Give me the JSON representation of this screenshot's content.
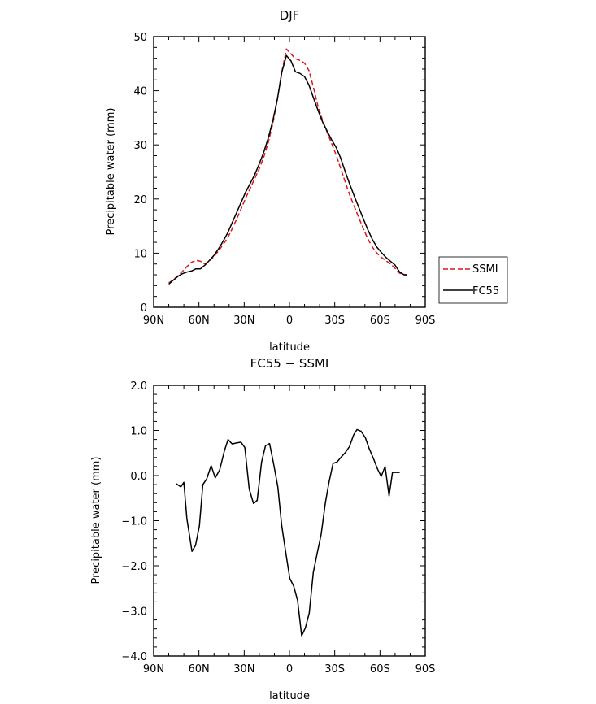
{
  "chart_data": [
    {
      "type": "line",
      "title": "DJF",
      "xlabel": "latitude",
      "ylabel": "Precipitable water  (mm)",
      "xlim": [
        90,
        -90
      ],
      "ylim": [
        0,
        50
      ],
      "xticks": [
        90,
        60,
        30,
        0,
        -30,
        -60,
        -90
      ],
      "xticklabels": [
        "90N",
        "60N",
        "30N",
        "0",
        "30S",
        "60S",
        "90S"
      ],
      "yticks": [
        0,
        10,
        20,
        30,
        40,
        50
      ],
      "yticklabels": [
        "0",
        "10",
        "20",
        "30",
        "40",
        "50"
      ],
      "legend": {
        "placement": "right",
        "entries": [
          "SSMI",
          "FC55"
        ]
      },
      "series": [
        {
          "name": "SSMI",
          "color": "#e0151b",
          "dash": "dashed",
          "x": [
            80,
            77,
            74,
            71,
            68,
            65,
            62,
            59,
            56,
            53,
            50,
            47,
            44,
            41,
            38,
            35,
            32,
            29,
            26,
            23,
            20,
            17,
            14,
            11,
            8,
            5,
            2,
            -1,
            -4,
            -7,
            -10,
            -13,
            -16,
            -19,
            -22,
            -25,
            -28,
            -31,
            -34,
            -37,
            -40,
            -43,
            -46,
            -49,
            -52,
            -55,
            -58,
            -61,
            -64,
            -67,
            -70,
            -73,
            -76,
            -78
          ],
          "values": [
            4.5,
            5.1,
            5.8,
            6.6,
            7.5,
            8.3,
            8.7,
            8.5,
            8.0,
            8.6,
            9.4,
            10.4,
            11.6,
            12.8,
            14.5,
            16.3,
            18.2,
            20.2,
            22.0,
            23.8,
            25.6,
            27.8,
            30.5,
            34.0,
            38.5,
            43.5,
            47.7,
            46.8,
            45.9,
            45.6,
            45.1,
            43.7,
            40.5,
            37.0,
            34.5,
            32.3,
            30.2,
            28.1,
            25.6,
            23.1,
            20.7,
            18.6,
            16.5,
            14.5,
            12.6,
            11.1,
            10.0,
            9.2,
            8.6,
            8.0,
            7.2,
            6.3,
            6.0,
            6.0
          ]
        },
        {
          "name": "FC55",
          "color": "#000000",
          "dash": "solid",
          "x": [
            80,
            77,
            74,
            71,
            68,
            65,
            62,
            59,
            56,
            53,
            50,
            47,
            44,
            41,
            38,
            35,
            32,
            29,
            26,
            23,
            20,
            17,
            14,
            11,
            8,
            5,
            2,
            -1,
            -4,
            -7,
            -10,
            -13,
            -16,
            -19,
            -22,
            -25,
            -28,
            -31,
            -34,
            -37,
            -40,
            -43,
            -46,
            -49,
            -52,
            -55,
            -58,
            -61,
            -64,
            -67,
            -70,
            -73,
            -76,
            -78
          ],
          "values": [
            4.3,
            5.0,
            5.7,
            6.2,
            6.5,
            6.7,
            7.1,
            7.1,
            7.8,
            8.7,
            9.6,
            10.8,
            12.2,
            13.7,
            15.6,
            17.5,
            19.4,
            21.3,
            22.9,
            24.5,
            26.5,
            28.7,
            31.3,
            34.5,
            38.5,
            43.5,
            46.5,
            45.5,
            43.5,
            43.2,
            42.6,
            41.0,
            38.6,
            36.3,
            34.2,
            32.5,
            30.9,
            29.5,
            27.5,
            25.0,
            22.7,
            20.5,
            18.4,
            16.3,
            14.3,
            12.5,
            11.1,
            10.1,
            9.2,
            8.5,
            7.8,
            6.5,
            6.0,
            6.0
          ]
        }
      ]
    },
    {
      "type": "line",
      "title": "FC55 − SSMI",
      "xlabel": "latitude",
      "ylabel": "Precipitable water  (mm)",
      "xlim": [
        90,
        -90
      ],
      "ylim": [
        -4,
        2
      ],
      "xticks": [
        90,
        60,
        30,
        0,
        -30,
        -60,
        -90
      ],
      "xticklabels": [
        "90N",
        "60N",
        "30N",
        "0",
        "30S",
        "60S",
        "90S"
      ],
      "yticks": [
        -4,
        -3,
        -2,
        -1,
        0,
        1,
        2
      ],
      "yticklabels": [
        "−4.0",
        "−3.0",
        "−2.0",
        "−1.0",
        "0.0",
        "1.0",
        "2.0"
      ],
      "series": [
        {
          "color": "#000000",
          "dash": "solid",
          "x": [
            75,
            72,
            70,
            68,
            64.6,
            62.3,
            59.7,
            57.4,
            54.8,
            51.9,
            49.2,
            46.3,
            43.1,
            40.7,
            38,
            35.4,
            32.1,
            29.6,
            26.7,
            23.8,
            21.4,
            18.5,
            15.9,
            13.2,
            10.6,
            7.7,
            5.2,
            2.5,
            -0.2,
            -2.8,
            -5.4,
            -8.1,
            -10.5,
            -13.1,
            -15.8,
            -18.4,
            -21,
            -23.8,
            -26.2,
            -28.9,
            -31.5,
            -34.3,
            -37,
            -39.7,
            -42.5,
            -44.8,
            -47.5,
            -50.3,
            -52.8,
            -55.6,
            -58.3,
            -60.8,
            -63.4,
            -66,
            -68.3,
            -70.7,
            -73.1
          ],
          "values": [
            -0.18,
            -0.25,
            -0.15,
            -0.95,
            -1.68,
            -1.55,
            -1.12,
            -0.2,
            -0.07,
            0.22,
            -0.05,
            0.12,
            0.55,
            0.8,
            0.7,
            0.72,
            0.74,
            0.62,
            -0.3,
            -0.62,
            -0.55,
            0.3,
            0.66,
            0.71,
            0.28,
            -0.25,
            -1.1,
            -1.7,
            -2.28,
            -2.45,
            -2.77,
            -3.55,
            -3.38,
            -3.05,
            -2.15,
            -1.72,
            -1.3,
            -0.6,
            -0.15,
            0.27,
            0.3,
            0.41,
            0.51,
            0.64,
            0.9,
            1.02,
            0.98,
            0.84,
            0.6,
            0.38,
            0.15,
            -0.02,
            0.2,
            -0.45,
            0.07,
            0.07,
            0.07
          ]
        }
      ]
    }
  ]
}
